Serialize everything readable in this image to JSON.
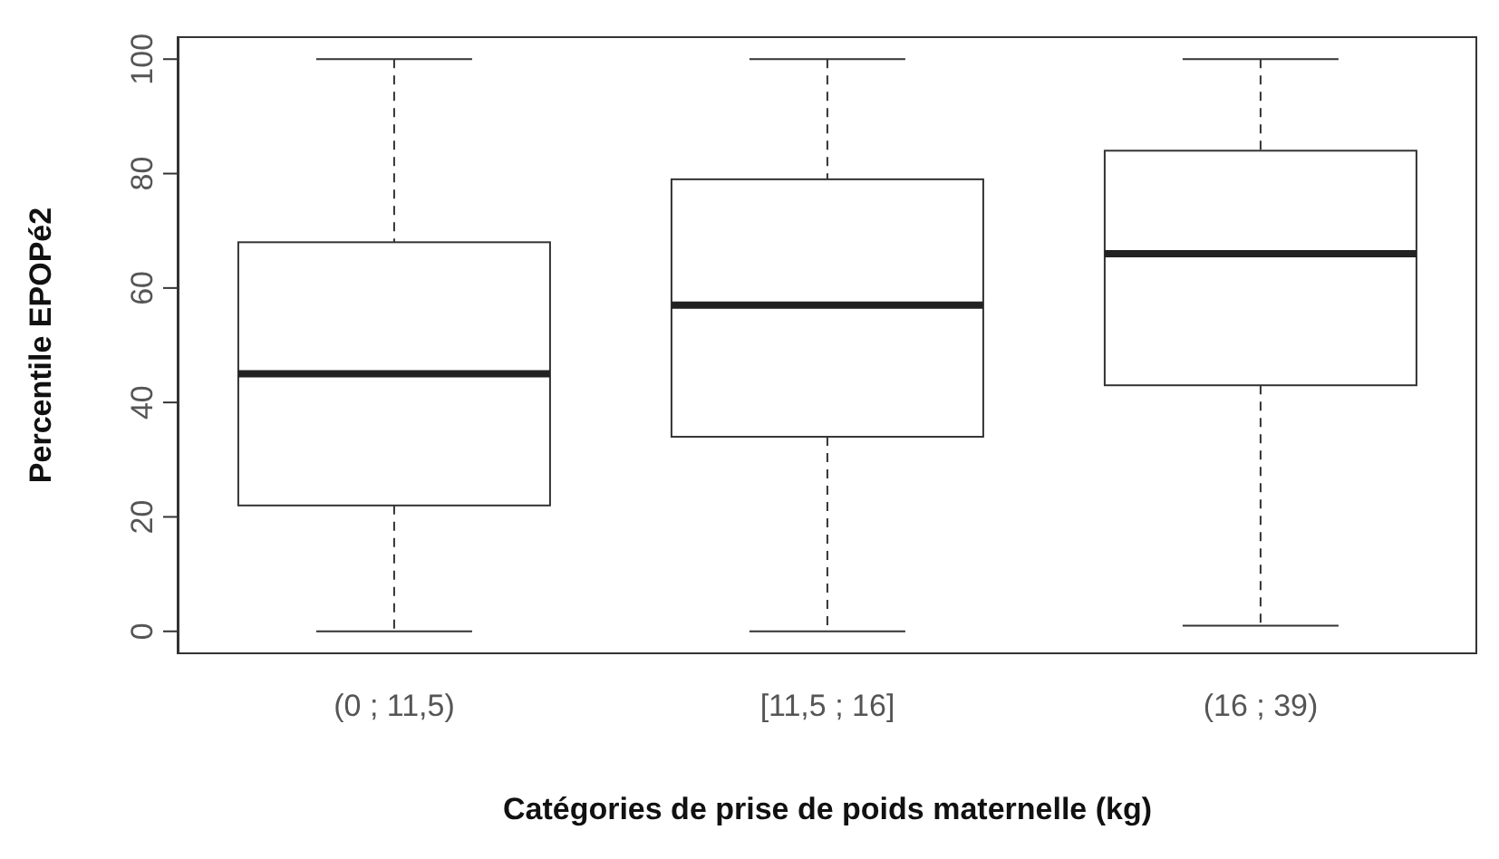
{
  "chart_data": {
    "type": "box",
    "xlabel": "Catégories de prise de poids maternelle (kg)",
    "ylabel": "Percentile EPOPé2",
    "categories": [
      "(0 ; 11,5)",
      "[11,5 ; 16]",
      "(16 ; 39)"
    ],
    "boxes": [
      {
        "low": 0,
        "q1": 22,
        "median": 45,
        "q3": 68,
        "high": 100
      },
      {
        "low": 0,
        "q1": 34,
        "median": 57,
        "q3": 79,
        "high": 100
      },
      {
        "low": 1,
        "q1": 43,
        "median": 66,
        "q3": 84,
        "high": 100
      }
    ],
    "ylim": [
      -4,
      104
    ],
    "yticks": [
      0,
      20,
      40,
      60,
      80,
      100
    ],
    "grid": false
  }
}
